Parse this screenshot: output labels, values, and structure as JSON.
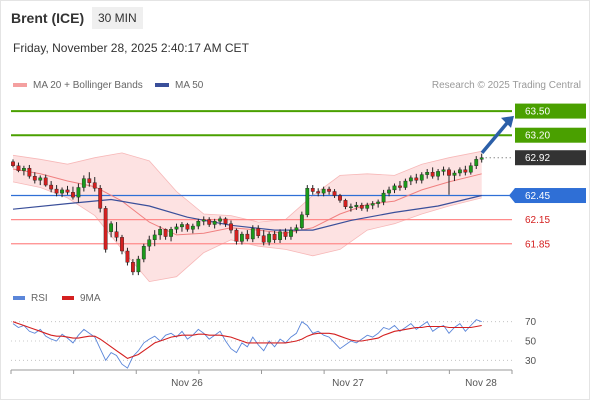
{
  "header": {
    "instrument": "Brent (ICE)",
    "interval": "30 MIN",
    "datetime": "Friday, November 28, 2025 2:40:17 AM CET"
  },
  "legend": {
    "ma20_label": "MA 20 + Bollinger Bands",
    "ma50_label": "MA 50",
    "credit": "Research © 2025 Trading Central"
  },
  "rsi_legend": {
    "rsi_label": "RSI",
    "ma_label": "9MA"
  },
  "colors": {
    "up_candle": "#1a9a1a",
    "down_candle": "#d42020",
    "bollinger_fill": "#fde2e2",
    "ma20": "#f08080",
    "ma50": "#3a4f9a",
    "resistance": "#4aa000",
    "support": "#ff8a8a",
    "pivot": "#2f6fd6",
    "current_price": "#333333",
    "rsi": "#5b86d9",
    "rsi_ma": "#d42020",
    "arrow": "#2b5fa8"
  },
  "chart_data": [
    {
      "type": "candlestick",
      "title": "Brent (ICE)",
      "interval": "30 MIN",
      "x_ticks": [
        "Nov 26",
        "Nov 27",
        "Nov 28"
      ],
      "ylim": [
        61.3,
        63.7
      ],
      "levels": [
        {
          "value": 63.5,
          "label": "63.50",
          "kind": "resistance"
        },
        {
          "value": 63.2,
          "label": "63.20",
          "kind": "resistance"
        },
        {
          "value": 62.92,
          "label": "62.92",
          "kind": "current"
        },
        {
          "value": 62.45,
          "label": "62.45",
          "kind": "pivot"
        },
        {
          "value": 62.15,
          "label": "62.15",
          "kind": "support"
        },
        {
          "value": 61.85,
          "label": "61.85",
          "kind": "support"
        }
      ],
      "candles": [
        [
          62.87,
          62.9,
          62.8,
          62.82
        ],
        [
          62.82,
          62.86,
          62.74,
          62.76
        ],
        [
          62.76,
          62.82,
          62.7,
          62.79
        ],
        [
          62.79,
          62.83,
          62.66,
          62.69
        ],
        [
          62.69,
          62.74,
          62.6,
          62.64
        ],
        [
          62.64,
          62.7,
          62.58,
          62.67
        ],
        [
          62.67,
          62.71,
          62.56,
          62.58
        ],
        [
          62.58,
          62.63,
          62.49,
          62.53
        ],
        [
          62.53,
          62.58,
          62.44,
          62.48
        ],
        [
          62.48,
          62.55,
          62.43,
          62.52
        ],
        [
          62.52,
          62.57,
          62.46,
          62.49
        ],
        [
          62.49,
          62.56,
          62.4,
          62.43
        ],
        [
          62.43,
          62.6,
          62.36,
          62.55
        ],
        [
          62.55,
          62.7,
          62.5,
          62.66
        ],
        [
          62.66,
          62.74,
          62.56,
          62.61
        ],
        [
          62.61,
          62.68,
          62.5,
          62.54
        ],
        [
          62.54,
          62.58,
          62.24,
          62.29
        ],
        [
          62.29,
          62.32,
          61.74,
          61.78
        ],
        [
          62.0,
          62.13,
          61.93,
          62.1
        ],
        [
          62.0,
          62.12,
          61.88,
          61.93
        ],
        [
          61.93,
          61.96,
          61.72,
          61.76
        ],
        [
          61.76,
          61.8,
          61.58,
          61.62
        ],
        [
          61.62,
          61.66,
          61.46,
          61.5
        ],
        [
          61.5,
          61.7,
          61.46,
          61.66
        ],
        [
          61.66,
          61.85,
          61.62,
          61.82
        ],
        [
          61.82,
          61.95,
          61.76,
          61.9
        ],
        [
          61.9,
          62.02,
          61.82,
          61.96
        ],
        [
          61.96,
          62.07,
          61.9,
          62.03
        ],
        [
          62.03,
          62.04,
          61.9,
          61.94
        ],
        [
          61.94,
          62.06,
          61.88,
          62.03
        ],
        [
          62.03,
          62.1,
          61.98,
          62.06
        ],
        [
          62.06,
          62.12,
          62.0,
          62.09
        ],
        [
          62.09,
          62.11,
          62.0,
          62.03
        ],
        [
          62.03,
          62.1,
          61.98,
          62.07
        ],
        [
          62.07,
          62.16,
          62.03,
          62.13
        ],
        [
          62.13,
          62.19,
          62.08,
          62.15
        ],
        [
          62.15,
          62.18,
          62.06,
          62.09
        ],
        [
          62.09,
          62.16,
          62.04,
          62.13
        ],
        [
          62.13,
          62.19,
          62.08,
          62.16
        ],
        [
          62.16,
          62.18,
          62.06,
          62.1
        ],
        [
          62.1,
          62.14,
          61.98,
          62.02
        ],
        [
          62.02,
          62.04,
          61.84,
          61.88
        ],
        [
          61.88,
          62.0,
          61.84,
          61.97
        ],
        [
          61.97,
          62.02,
          61.88,
          61.91
        ],
        [
          61.91,
          62.08,
          61.87,
          62.04
        ],
        [
          62.04,
          62.08,
          61.92,
          61.95
        ],
        [
          61.95,
          62.02,
          61.83,
          61.87
        ],
        [
          61.87,
          62.0,
          61.83,
          61.97
        ],
        [
          61.97,
          62.01,
          61.86,
          61.9
        ],
        [
          61.9,
          62.03,
          61.86,
          62.0
        ],
        [
          62.0,
          62.04,
          61.9,
          61.94
        ],
        [
          61.94,
          62.06,
          61.9,
          62.02
        ],
        [
          62.02,
          62.09,
          61.98,
          62.05
        ],
        [
          62.05,
          62.25,
          62.03,
          62.21
        ],
        [
          62.21,
          62.58,
          62.18,
          62.54
        ],
        [
          62.54,
          62.58,
          62.46,
          62.5
        ],
        [
          62.5,
          62.54,
          62.44,
          62.48
        ],
        [
          62.48,
          62.56,
          62.44,
          62.53
        ],
        [
          62.53,
          62.56,
          62.46,
          62.5
        ],
        [
          62.5,
          62.53,
          62.42,
          62.45
        ],
        [
          62.45,
          62.47,
          62.36,
          62.39
        ],
        [
          62.39,
          62.41,
          62.28,
          62.31
        ],
        [
          62.31,
          62.35,
          62.25,
          62.31
        ],
        [
          62.31,
          62.37,
          62.27,
          62.33
        ],
        [
          62.33,
          62.36,
          62.26,
          62.29
        ],
        [
          62.29,
          62.36,
          62.25,
          62.33
        ],
        [
          62.33,
          62.38,
          62.28,
          62.35
        ],
        [
          62.35,
          62.4,
          62.3,
          62.37
        ],
        [
          62.37,
          62.52,
          62.33,
          62.48
        ],
        [
          62.48,
          62.56,
          62.44,
          62.52
        ],
        [
          62.52,
          62.6,
          62.48,
          62.57
        ],
        [
          62.57,
          62.63,
          62.51,
          62.55
        ],
        [
          62.55,
          62.66,
          62.52,
          62.63
        ],
        [
          62.63,
          62.7,
          62.58,
          62.67
        ],
        [
          62.67,
          62.72,
          62.6,
          62.64
        ],
        [
          62.64,
          62.74,
          62.6,
          62.71
        ],
        [
          62.71,
          62.78,
          62.66,
          62.74
        ],
        [
          62.74,
          62.8,
          62.66,
          62.69
        ],
        [
          62.69,
          62.78,
          62.64,
          62.75
        ],
        [
          62.75,
          62.81,
          62.7,
          62.77
        ],
        [
          62.77,
          62.8,
          62.46,
          62.7
        ],
        [
          62.7,
          62.76,
          62.63,
          62.73
        ],
        [
          62.73,
          62.8,
          62.69,
          62.77
        ],
        [
          62.77,
          62.82,
          62.7,
          62.74
        ],
        [
          62.74,
          62.86,
          62.71,
          62.82
        ],
        [
          62.82,
          62.94,
          62.78,
          62.9
        ],
        [
          62.9,
          62.97,
          62.86,
          62.92
        ]
      ],
      "ma20": [
        [
          0,
          62.78
        ],
        [
          5,
          62.72
        ],
        [
          10,
          62.63
        ],
        [
          15,
          62.56
        ],
        [
          20,
          62.38
        ],
        [
          25,
          62.12
        ],
        [
          30,
          61.96
        ],
        [
          35,
          61.98
        ],
        [
          40,
          62.05
        ],
        [
          45,
          62.02
        ],
        [
          50,
          61.98
        ],
        [
          55,
          62.05
        ],
        [
          60,
          62.22
        ],
        [
          65,
          62.34
        ],
        [
          70,
          62.38
        ],
        [
          75,
          62.52
        ],
        [
          80,
          62.62
        ],
        [
          86,
          62.72
        ]
      ],
      "bollinger_upper": [
        [
          0,
          62.95
        ],
        [
          5,
          62.9
        ],
        [
          10,
          62.84
        ],
        [
          15,
          62.92
        ],
        [
          20,
          62.98
        ],
        [
          25,
          62.88
        ],
        [
          30,
          62.5
        ],
        [
          35,
          62.22
        ],
        [
          40,
          62.2
        ],
        [
          45,
          62.12
        ],
        [
          50,
          62.15
        ],
        [
          55,
          62.45
        ],
        [
          60,
          62.7
        ],
        [
          65,
          62.72
        ],
        [
          70,
          62.7
        ],
        [
          75,
          62.84
        ],
        [
          80,
          62.92
        ],
        [
          86,
          63.0
        ]
      ],
      "bollinger_lower": [
        [
          0,
          62.62
        ],
        [
          5,
          62.55
        ],
        [
          10,
          62.42
        ],
        [
          15,
          62.2
        ],
        [
          20,
          61.78
        ],
        [
          25,
          61.38
        ],
        [
          30,
          61.44
        ],
        [
          35,
          61.74
        ],
        [
          40,
          61.9
        ],
        [
          45,
          61.82
        ],
        [
          50,
          61.78
        ],
        [
          55,
          61.7
        ],
        [
          60,
          61.78
        ],
        [
          65,
          62.02
        ],
        [
          70,
          62.1
        ],
        [
          75,
          62.22
        ],
        [
          80,
          62.32
        ],
        [
          86,
          62.42
        ]
      ],
      "ma50": [
        [
          0,
          62.28
        ],
        [
          10,
          62.35
        ],
        [
          18,
          62.4
        ],
        [
          25,
          62.32
        ],
        [
          32,
          62.18
        ],
        [
          40,
          62.08
        ],
        [
          48,
          62.02
        ],
        [
          55,
          62.02
        ],
        [
          62,
          62.14
        ],
        [
          70,
          62.24
        ],
        [
          78,
          62.32
        ],
        [
          86,
          62.45
        ]
      ]
    },
    {
      "type": "line",
      "name": "RSI",
      "ylim": [
        20,
        80
      ],
      "y_ticks": [
        70,
        50,
        30
      ],
      "series": [
        {
          "name": "RSI",
          "values": [
            68,
            64,
            66,
            60,
            58,
            62,
            55,
            52,
            50,
            57,
            53,
            48,
            56,
            62,
            58,
            54,
            42,
            30,
            38,
            35,
            26,
            22,
            34,
            40,
            48,
            52,
            55,
            50,
            56,
            58,
            54,
            60,
            52,
            56,
            62,
            58,
            52,
            56,
            60,
            50,
            42,
            38,
            48,
            44,
            54,
            46,
            40,
            50,
            44,
            52,
            48,
            54,
            58,
            70,
            66,
            58,
            60,
            56,
            54,
            48,
            42,
            46,
            50,
            48,
            52,
            56,
            54,
            58,
            64,
            62,
            66,
            60,
            64,
            68,
            62,
            66,
            70,
            60,
            64,
            66,
            58,
            64,
            68,
            60,
            66,
            72,
            70
          ]
        },
        {
          "name": "9MA",
          "values": [
            70,
            68,
            66,
            64,
            62,
            60,
            58,
            56,
            55,
            55,
            54,
            53,
            53,
            54,
            55,
            55,
            52,
            48,
            44,
            40,
            36,
            32,
            34,
            36,
            40,
            44,
            48,
            50,
            52,
            54,
            55,
            56,
            56,
            56,
            57,
            57,
            56,
            56,
            56,
            55,
            54,
            52,
            50,
            48,
            48,
            48,
            48,
            48,
            48,
            48,
            48,
            49,
            50,
            52,
            55,
            57,
            58,
            58,
            58,
            57,
            55,
            53,
            51,
            50,
            50,
            51,
            52,
            53,
            56,
            58,
            60,
            61,
            62,
            63,
            64,
            64,
            65,
            65,
            65,
            65,
            64,
            64,
            64,
            64,
            64,
            65,
            66
          ]
        }
      ]
    }
  ]
}
